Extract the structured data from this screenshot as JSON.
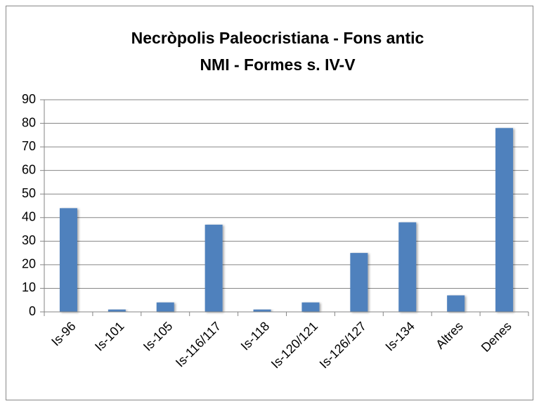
{
  "chart_data": {
    "type": "bar",
    "title": [
      "Necròpolis Paleocristiana - Fons antic",
      "NMI - Formes s. IV-V"
    ],
    "categories": [
      "Is-96",
      "Is-101",
      "Is-105",
      "Is-116/117",
      "Is-118",
      "Is-120/121",
      "Is-126/127",
      "Is-134",
      "Altres",
      "Denes"
    ],
    "values": [
      44,
      1,
      4,
      37,
      1,
      4,
      25,
      38,
      7,
      78
    ],
    "color": "#4f81bd",
    "ylim": [
      0,
      90
    ],
    "yticks": [
      0,
      10,
      20,
      30,
      40,
      50,
      60,
      70,
      80,
      90
    ],
    "grid": true
  }
}
